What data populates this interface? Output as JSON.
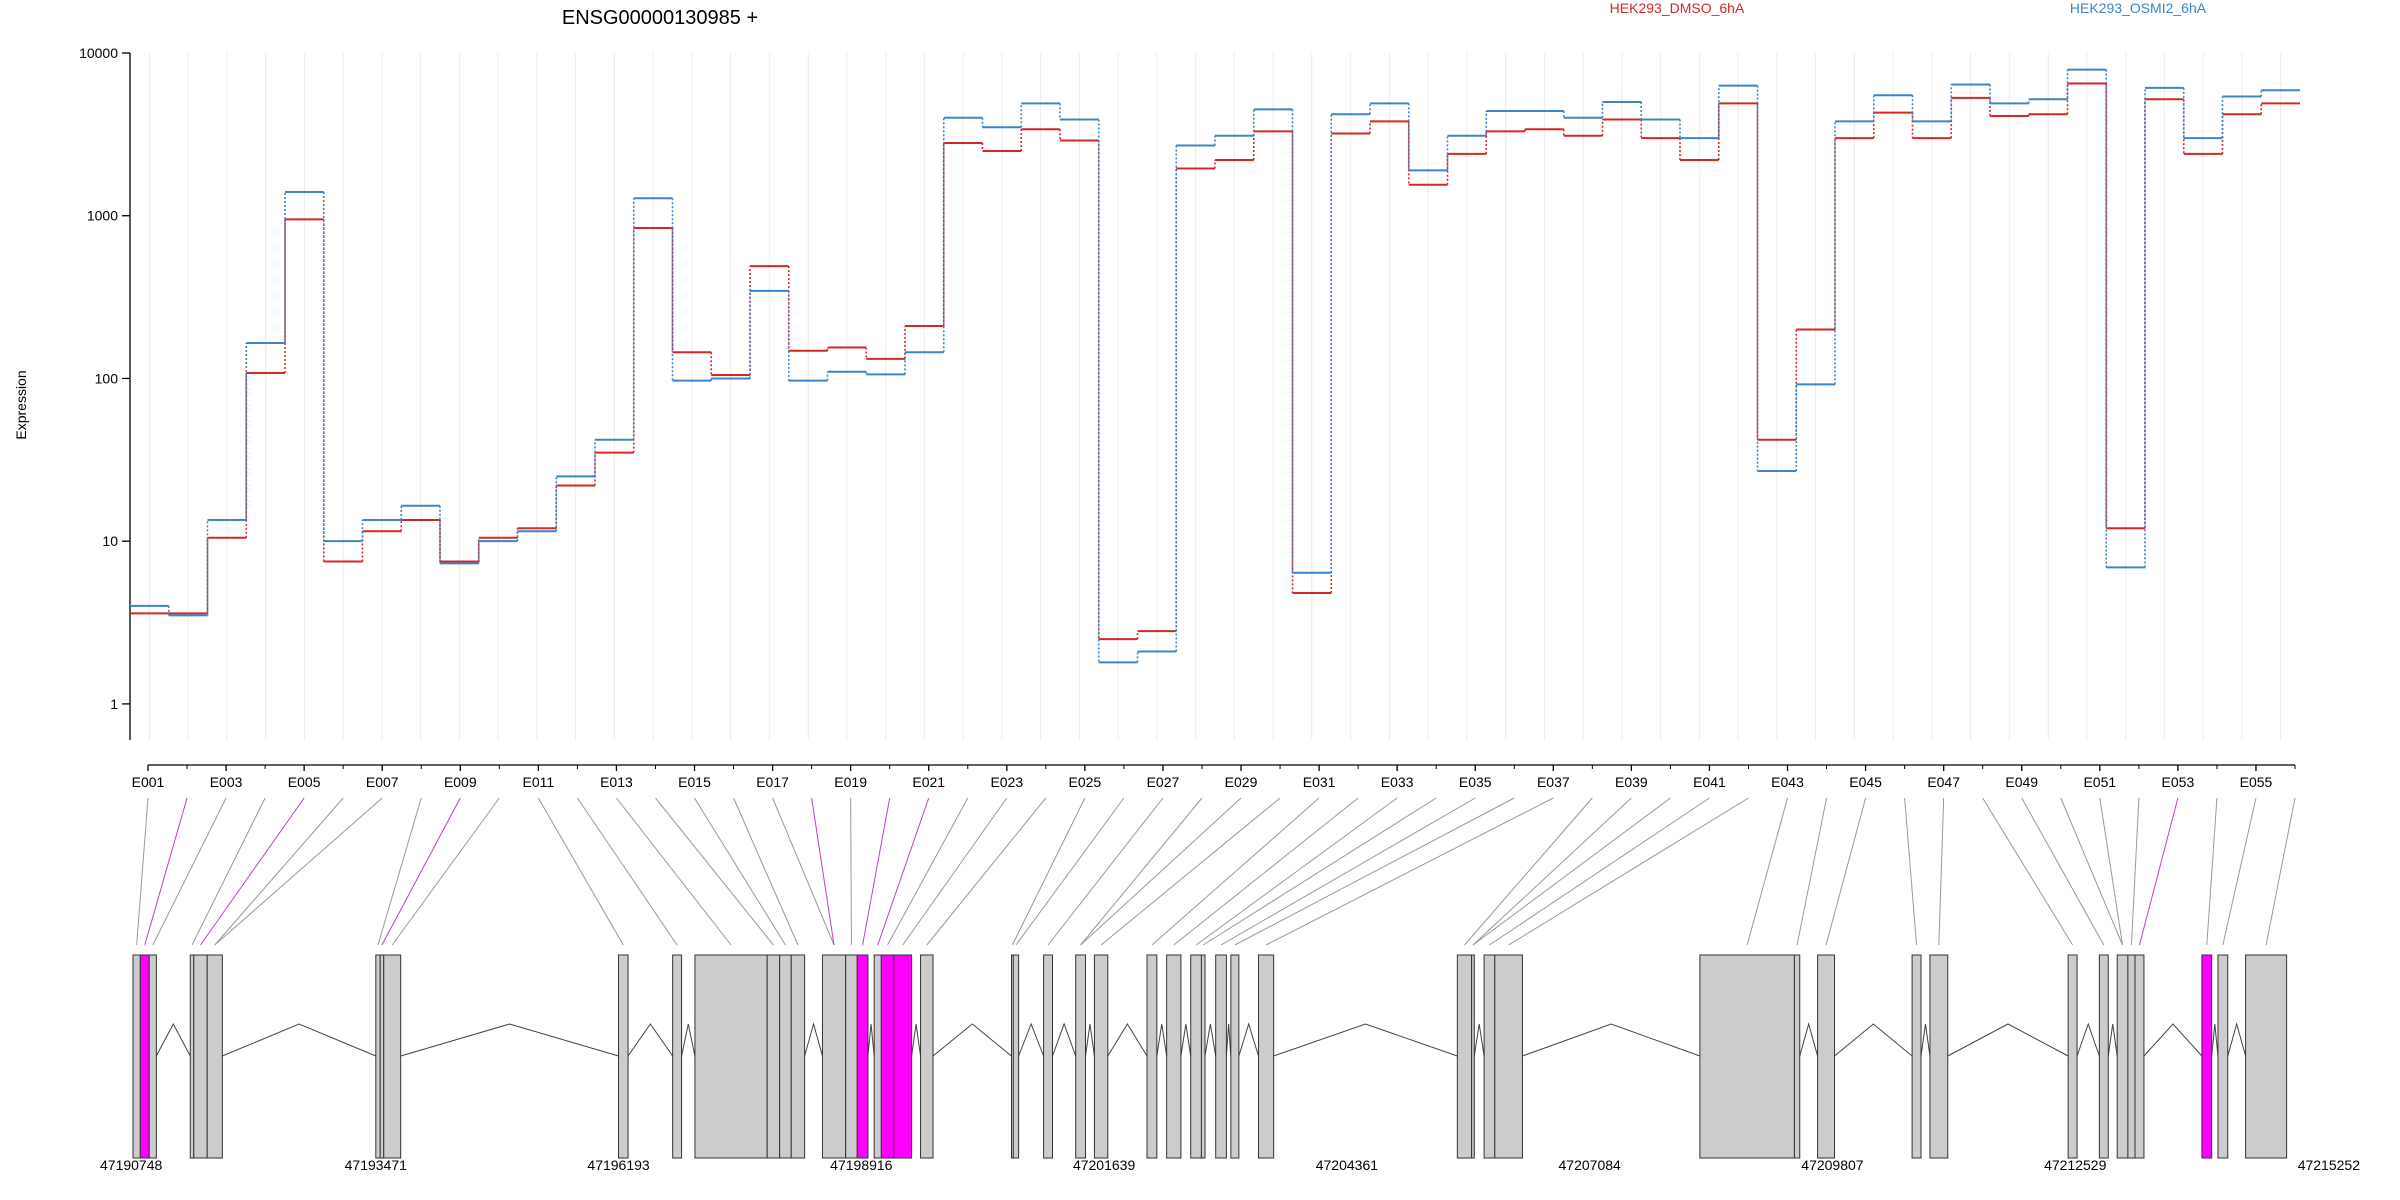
{
  "chart_data": {
    "type": "line",
    "title": "ENSG00000130985 +",
    "ylabel": "Expression",
    "yscale": "log",
    "ylim": [
      0.6,
      10000
    ],
    "y_ticks": [
      1,
      10,
      100,
      1000,
      10000
    ],
    "y_tick_labels": [
      "1",
      "10",
      "100",
      "1000",
      "10000"
    ],
    "exons": [
      "E001",
      "E002",
      "E003",
      "E004",
      "E005",
      "E006",
      "E007",
      "E008",
      "E009",
      "E010",
      "E011",
      "E012",
      "E013",
      "E014",
      "E015",
      "E016",
      "E017",
      "E018",
      "E019",
      "E020",
      "E021",
      "E022",
      "E023",
      "E024",
      "E025",
      "E026",
      "E027",
      "E028",
      "E029",
      "E030",
      "E031",
      "E032",
      "E033",
      "E034",
      "E035",
      "E036",
      "E037",
      "E038",
      "E039",
      "E040",
      "E041",
      "E042",
      "E043",
      "E044",
      "E045",
      "E046",
      "E047",
      "E048",
      "E049",
      "E050",
      "E051",
      "E052",
      "E053",
      "E054",
      "E055",
      "E056"
    ],
    "exon_axis_labels": [
      "E001",
      "E003",
      "E005",
      "E007",
      "E009",
      "E011",
      "E013",
      "E015",
      "E017",
      "E019",
      "E021",
      "E023",
      "E025",
      "E027",
      "E029",
      "E031",
      "E033",
      "E035",
      "E037",
      "E039",
      "E041",
      "E043",
      "E045",
      "E047",
      "E049",
      "E051",
      "E053",
      "E055"
    ],
    "series": [
      {
        "name": "HEK293_DMSO_6hA",
        "color": "#d62728",
        "values": [
          3.6,
          3.6,
          10.5,
          108,
          950,
          7.5,
          11.5,
          13.5,
          7.5,
          10.5,
          12,
          22,
          35,
          840,
          145,
          105,
          490,
          148,
          155,
          132,
          210,
          2800,
          2500,
          3400,
          2900,
          2.5,
          2.8,
          1950,
          2200,
          3300,
          4.8,
          3200,
          3800,
          1550,
          2400,
          3300,
          3400,
          3100,
          3900,
          3000,
          2200,
          4900,
          42,
          200,
          3000,
          4300,
          3000,
          5300,
          4100,
          4200,
          6500,
          12,
          5200,
          2400,
          4200,
          4900
        ]
      },
      {
        "name": "HEK293_OSMI2_6hA",
        "color": "#3c85c6",
        "values": [
          4.0,
          3.5,
          13.5,
          165,
          1400,
          10,
          13.5,
          16.5,
          7.3,
          10,
          11.5,
          25,
          42,
          1280,
          97,
          100,
          345,
          97,
          110,
          106,
          145,
          4000,
          3500,
          4900,
          3900,
          1.8,
          2.1,
          2700,
          3100,
          4500,
          6.4,
          4200,
          4900,
          1900,
          3100,
          4400,
          4400,
          4000,
          5000,
          3900,
          3000,
          6300,
          27,
          92,
          3800,
          5500,
          3800,
          6400,
          4900,
          5200,
          7900,
          6.9,
          6100,
          3000,
          5400,
          5900
        ]
      }
    ],
    "coordinate_ticks": [
      "47190748",
      "47193471",
      "47196193",
      "47198916",
      "47201639",
      "47204361",
      "47207084",
      "47209807",
      "47212529",
      "47215252"
    ],
    "highlight_exons": [
      "E002",
      "E005",
      "E009",
      "E018",
      "E020",
      "E021",
      "E053"
    ],
    "highlight_color": "#ff00ff",
    "legend_position": "top"
  }
}
